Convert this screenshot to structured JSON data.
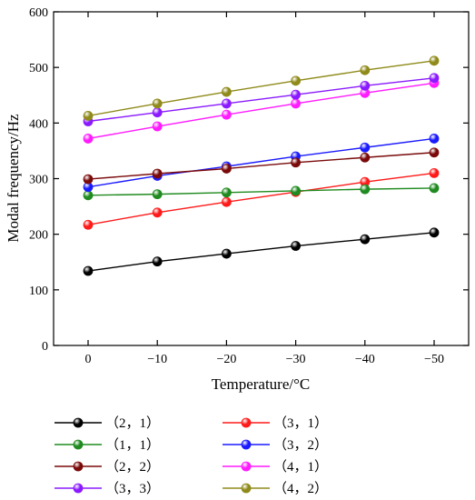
{
  "chart_data": {
    "type": "line",
    "xlabel": "Temperature/°C",
    "ylabel": "Modal frequency/Hz",
    "x": [
      0,
      -10,
      -20,
      -30,
      -40,
      -50
    ],
    "x_tick_labels": [
      "0",
      "−10",
      "−20",
      "−30",
      "−40",
      "−50"
    ],
    "ylim": [
      0,
      600
    ],
    "y_ticks": [
      0,
      100,
      200,
      300,
      400,
      500,
      600
    ],
    "grid": false,
    "legend_position": "bottom",
    "series": [
      {
        "name": "（2，1）",
        "color": "#000000",
        "values": [
          134,
          151,
          165,
          179,
          191,
          203
        ]
      },
      {
        "name": "（3，1）",
        "color": "#ff1a1a",
        "values": [
          217,
          239,
          258,
          276,
          294,
          310
        ]
      },
      {
        "name": "（1，1）",
        "color": "#1f8a1f",
        "values": [
          270,
          272,
          275,
          278,
          281,
          283
        ]
      },
      {
        "name": "（3，2）",
        "color": "#1a1aff",
        "values": [
          285,
          305,
          322,
          340,
          356,
          372
        ]
      },
      {
        "name": "（2，2）",
        "color": "#7a0a0a",
        "values": [
          299,
          309,
          318,
          329,
          338,
          347
        ]
      },
      {
        "name": "（4，1）",
        "color": "#ff1aff",
        "values": [
          372,
          394,
          415,
          435,
          454,
          472
        ]
      },
      {
        "name": "（3，3）",
        "color": "#8a1aff",
        "values": [
          403,
          419,
          435,
          451,
          467,
          481
        ]
      },
      {
        "name": "（4，2）",
        "color": "#8f8a1a",
        "values": [
          413,
          435,
          456,
          476,
          495,
          512
        ]
      }
    ]
  }
}
